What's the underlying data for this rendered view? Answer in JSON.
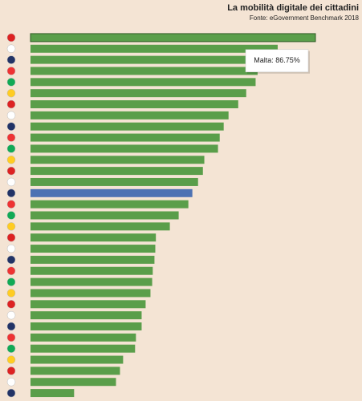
{
  "chart_data": {
    "type": "bar",
    "orientation": "horizontal",
    "title": "La mobilità digitale dei cittadini",
    "subtitle": "Fonte: eGovernment Benchmark 2018",
    "categories": [
      null,
      null,
      null,
      null,
      null,
      null,
      null,
      null,
      null,
      null,
      null,
      null,
      null,
      null,
      null,
      null,
      null,
      null,
      null,
      null,
      null,
      null,
      null,
      null,
      null,
      null,
      null,
      null,
      null,
      null,
      null,
      null,
      null
    ],
    "values": [
      100,
      86.75,
      79,
      79.7,
      79,
      75.7,
      72.9,
      69.5,
      67.8,
      66.4,
      65.8,
      61,
      60.5,
      58.8,
      56.8,
      55.4,
      52,
      48.9,
      44,
      43.8,
      43.5,
      42.9,
      42.7,
      42.1,
      40.4,
      39,
      39,
      37,
      36.7,
      32.5,
      31.4,
      30,
      15.3
    ],
    "colors": [
      "#5a9e4a",
      "#5a9e4a",
      "#5a9e4a",
      "#5a9e4a",
      "#5a9e4a",
      "#5a9e4a",
      "#5a9e4a",
      "#5a9e4a",
      "#5a9e4a",
      "#5a9e4a",
      "#5a9e4a",
      "#5a9e4a",
      "#5a9e4a",
      "#5a9e4a",
      "#4d72b3",
      "#5a9e4a",
      "#5a9e4a",
      "#5a9e4a",
      "#5a9e4a",
      "#5a9e4a",
      "#5a9e4a",
      "#5a9e4a",
      "#5a9e4a",
      "#5a9e4a",
      "#5a9e4a",
      "#5a9e4a",
      "#5a9e4a",
      "#5a9e4a",
      "#5a9e4a",
      "#5a9e4a",
      "#5a9e4a",
      "#5a9e4a",
      "#5a9e4a"
    ],
    "xlim": [
      0,
      100
    ],
    "tooltip": "Malta: 86.75%"
  }
}
